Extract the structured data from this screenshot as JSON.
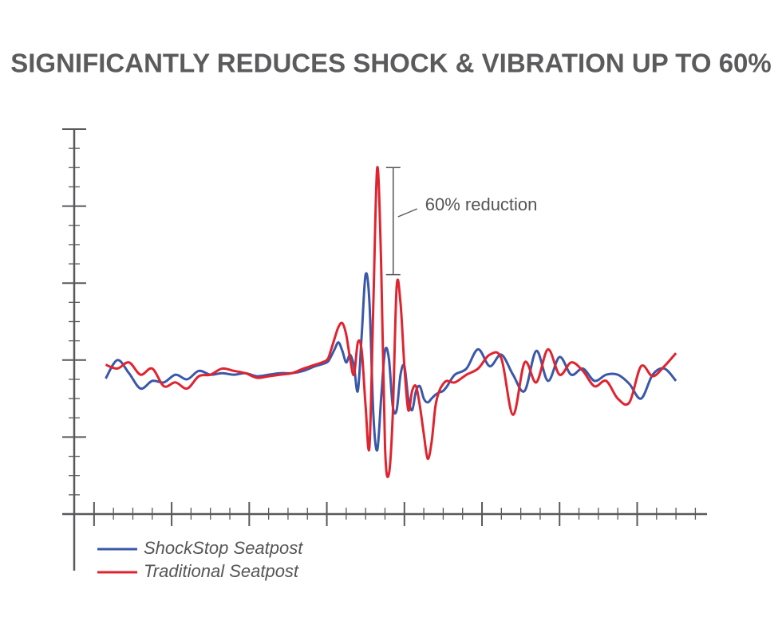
{
  "chart_data": {
    "type": "line",
    "title": "SIGNIFICANTLY REDUCES SHOCK & VIBRATION UP TO 60%",
    "annotation": "60% reduction",
    "legend": "bottom-left",
    "x": [
      0.15,
      0.3,
      0.45,
      0.6,
      0.75,
      0.9,
      1.05,
      1.2,
      1.35,
      1.5,
      1.65,
      1.8,
      1.95,
      2.1,
      2.25,
      2.4,
      2.55,
      2.7,
      2.85,
      3,
      3.05,
      3.1,
      3.15,
      3.2,
      3.25,
      3.3,
      3.35,
      3.4,
      3.45,
      3.5,
      3.55,
      3.6,
      3.65,
      3.7,
      3.75,
      3.8,
      3.85,
      3.9,
      3.95,
      4,
      4.05,
      4.1,
      4.15,
      4.2,
      4.25,
      4.3,
      4.35,
      4.4,
      4.45,
      4.5,
      4.55,
      4.65,
      4.8,
      4.95,
      5.1,
      5.25,
      5.4,
      5.55,
      5.7,
      5.85,
      6,
      6.15,
      6.3,
      6.45,
      6.6,
      6.75,
      6.9,
      7.05,
      7.2,
      7.35,
      7.5
    ],
    "series": [
      {
        "name": "ShockStop Seatpost",
        "color": "#3b58a8",
        "values": [
          1.76,
          2.0,
          1.83,
          1.63,
          1.73,
          1.71,
          1.81,
          1.75,
          1.86,
          1.81,
          1.83,
          1.81,
          1.83,
          1.79,
          1.81,
          1.83,
          1.83,
          1.86,
          1.92,
          1.97,
          2.04,
          2.14,
          2.23,
          2.12,
          1.97,
          2.07,
          1.92,
          1.6,
          2.33,
          3.11,
          2.74,
          1.29,
          0.83,
          1.5,
          2.12,
          2.02,
          1.4,
          1.35,
          1.81,
          1.92,
          1.5,
          1.35,
          1.6,
          1.66,
          1.5,
          1.45,
          1.5,
          1.55,
          1.58,
          1.6,
          1.66,
          1.81,
          1.89,
          2.14,
          1.92,
          2.07,
          1.81,
          1.6,
          2.12,
          1.73,
          2.04,
          1.81,
          1.89,
          1.73,
          1.81,
          1.81,
          1.69,
          1.5,
          1.81,
          1.89,
          1.73
        ]
      },
      {
        "name": "Traditional Seatpost",
        "color": "#e0242f",
        "values": [
          1.94,
          1.89,
          1.97,
          1.81,
          1.89,
          1.66,
          1.71,
          1.63,
          1.79,
          1.81,
          1.89,
          1.86,
          1.83,
          1.77,
          1.79,
          1.81,
          1.83,
          1.89,
          1.94,
          2.0,
          2.12,
          2.28,
          2.43,
          2.48,
          2.33,
          2.02,
          1.81,
          2.23,
          2.12,
          1.4,
          0.88,
          2.74,
          4.5,
          3.26,
          0.88,
          0.52,
          1.29,
          2.95,
          2.74,
          1.92,
          1.35,
          1.6,
          1.66,
          1.4,
          1.04,
          0.72,
          0.93,
          1.4,
          1.6,
          1.69,
          1.73,
          1.71,
          1.81,
          1.89,
          2.07,
          2.02,
          1.29,
          1.97,
          1.71,
          2.14,
          1.81,
          1.97,
          1.86,
          1.66,
          1.73,
          1.5,
          1.45,
          1.92,
          1.79,
          1.92,
          2.09
        ]
      }
    ],
    "xlim": [
      -0.41,
      7.9
    ],
    "ylim": [
      0,
      5
    ],
    "xticks": [
      0,
      0.25,
      0.5,
      0.75,
      1,
      1.25,
      1.5,
      1.75,
      2,
      2.25,
      2.5,
      2.75,
      3,
      3.25,
      3.5,
      3.75,
      4,
      4.25,
      4.5,
      4.75,
      5,
      5.25,
      5.5,
      5.75,
      6,
      6.25,
      6.5,
      6.75,
      7,
      7.25,
      7.5,
      7.75
    ],
    "yticks": [
      0,
      0.25,
      0.5,
      0.75,
      1,
      1.25,
      1.5,
      1.75,
      2,
      2.25,
      2.5,
      2.75,
      3,
      3.25,
      3.5,
      3.75,
      4,
      4.25,
      4.5,
      4.75,
      5
    ]
  }
}
